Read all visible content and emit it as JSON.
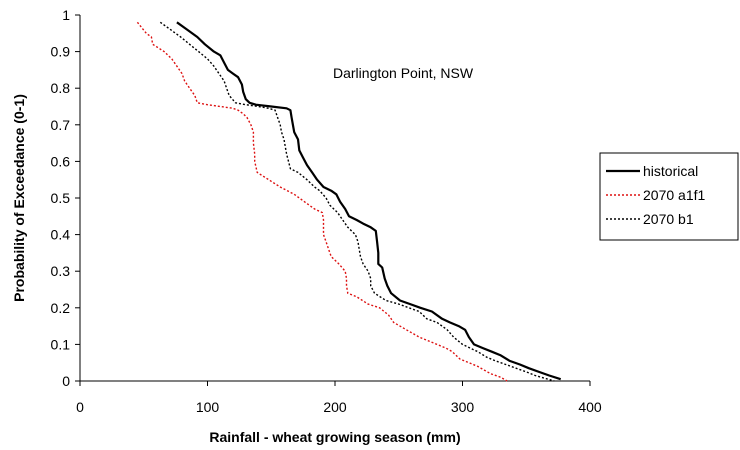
{
  "chart_data": {
    "type": "line",
    "title": "",
    "annotation": "Darlington Point, NSW",
    "xlabel": "Rainfall - wheat growing season (mm)",
    "ylabel": "Probability of Exceedance (0-1)",
    "xlim": [
      0,
      400
    ],
    "ylim": [
      0,
      1
    ],
    "x_ticks": [
      "0",
      "100",
      "200",
      "300",
      "400"
    ],
    "y_ticks": [
      "0",
      "0.1",
      "0.2",
      "0.3",
      "0.4",
      "0.5",
      "0.6",
      "0.7",
      "0.8",
      "0.9",
      "1"
    ],
    "grid": false,
    "legend_position": "right",
    "series": [
      {
        "name": "historical",
        "color": "#000000",
        "style": "solid",
        "points": [
          [
            76,
            0.98
          ],
          [
            84,
            0.96
          ],
          [
            92,
            0.94
          ],
          [
            98,
            0.92
          ],
          [
            105,
            0.9
          ],
          [
            110,
            0.89
          ],
          [
            113,
            0.87
          ],
          [
            116,
            0.85
          ],
          [
            120,
            0.84
          ],
          [
            124,
            0.83
          ],
          [
            127,
            0.81
          ],
          [
            128,
            0.79
          ],
          [
            130,
            0.77
          ],
          [
            133,
            0.76
          ],
          [
            138,
            0.755
          ],
          [
            150,
            0.75
          ],
          [
            162,
            0.745
          ],
          [
            165,
            0.74
          ],
          [
            166,
            0.72
          ],
          [
            167,
            0.7
          ],
          [
            168,
            0.68
          ],
          [
            171,
            0.66
          ],
          [
            172,
            0.63
          ],
          [
            175,
            0.61
          ],
          [
            178,
            0.59
          ],
          [
            182,
            0.57
          ],
          [
            186,
            0.55
          ],
          [
            191,
            0.53
          ],
          [
            197,
            0.52
          ],
          [
            201,
            0.51
          ],
          [
            204,
            0.49
          ],
          [
            208,
            0.47
          ],
          [
            211,
            0.45
          ],
          [
            217,
            0.44
          ],
          [
            222,
            0.43
          ],
          [
            228,
            0.42
          ],
          [
            232,
            0.41
          ],
          [
            233,
            0.38
          ],
          [
            234,
            0.35
          ],
          [
            234,
            0.32
          ],
          [
            237,
            0.31
          ],
          [
            239,
            0.28
          ],
          [
            241,
            0.26
          ],
          [
            244,
            0.24
          ],
          [
            251,
            0.22
          ],
          [
            259,
            0.21
          ],
          [
            267,
            0.2
          ],
          [
            276,
            0.19
          ],
          [
            284,
            0.17
          ],
          [
            290,
            0.16
          ],
          [
            297,
            0.15
          ],
          [
            302,
            0.14
          ],
          [
            305,
            0.12
          ],
          [
            309,
            0.1
          ],
          [
            316,
            0.09
          ],
          [
            323,
            0.08
          ],
          [
            330,
            0.07
          ],
          [
            337,
            0.055
          ],
          [
            345,
            0.045
          ],
          [
            352,
            0.035
          ],
          [
            360,
            0.025
          ],
          [
            368,
            0.015
          ],
          [
            377,
            0.005
          ]
        ]
      },
      {
        "name": "2070 a1f1",
        "color": "#dd1111",
        "style": "dotted",
        "points": [
          [
            45,
            0.98
          ],
          [
            52,
            0.95
          ],
          [
            56,
            0.94
          ],
          [
            57,
            0.92
          ],
          [
            66,
            0.9
          ],
          [
            72,
            0.88
          ],
          [
            76,
            0.86
          ],
          [
            80,
            0.84
          ],
          [
            82,
            0.82
          ],
          [
            86,
            0.8
          ],
          [
            90,
            0.78
          ],
          [
            92,
            0.76
          ],
          [
            100,
            0.755
          ],
          [
            110,
            0.75
          ],
          [
            120,
            0.745
          ],
          [
            124,
            0.74
          ],
          [
            128,
            0.73
          ],
          [
            131,
            0.72
          ],
          [
            134,
            0.7
          ],
          [
            136,
            0.68
          ],
          [
            136,
            0.65
          ],
          [
            137,
            0.62
          ],
          [
            137,
            0.6
          ],
          [
            139,
            0.57
          ],
          [
            148,
            0.55
          ],
          [
            157,
            0.53
          ],
          [
            168,
            0.51
          ],
          [
            176,
            0.49
          ],
          [
            184,
            0.47
          ],
          [
            190,
            0.46
          ],
          [
            191,
            0.44
          ],
          [
            191,
            0.42
          ],
          [
            191,
            0.4
          ],
          [
            193,
            0.38
          ],
          [
            195,
            0.36
          ],
          [
            197,
            0.34
          ],
          [
            203,
            0.32
          ],
          [
            208,
            0.3
          ],
          [
            209,
            0.28
          ],
          [
            209,
            0.26
          ],
          [
            210,
            0.24
          ],
          [
            217,
            0.23
          ],
          [
            226,
            0.21
          ],
          [
            235,
            0.2
          ],
          [
            242,
            0.18
          ],
          [
            246,
            0.16
          ],
          [
            256,
            0.14
          ],
          [
            266,
            0.12
          ],
          [
            280,
            0.1
          ],
          [
            287,
            0.09
          ],
          [
            292,
            0.08
          ],
          [
            298,
            0.06
          ],
          [
            305,
            0.05
          ],
          [
            312,
            0.04
          ],
          [
            322,
            0.02
          ],
          [
            330,
            0.01
          ],
          [
            335,
            0.0
          ]
        ]
      },
      {
        "name": "2070 b1",
        "color": "#000000",
        "style": "dotted",
        "points": [
          [
            63,
            0.98
          ],
          [
            71,
            0.96
          ],
          [
            79,
            0.94
          ],
          [
            86,
            0.92
          ],
          [
            93,
            0.9
          ],
          [
            100,
            0.88
          ],
          [
            105,
            0.86
          ],
          [
            109,
            0.84
          ],
          [
            113,
            0.82
          ],
          [
            115,
            0.8
          ],
          [
            117,
            0.78
          ],
          [
            122,
            0.76
          ],
          [
            130,
            0.755
          ],
          [
            140,
            0.75
          ],
          [
            148,
            0.745
          ],
          [
            153,
            0.74
          ],
          [
            155,
            0.72
          ],
          [
            157,
            0.7
          ],
          [
            158,
            0.68
          ],
          [
            160,
            0.66
          ],
          [
            162,
            0.62
          ],
          [
            165,
            0.58
          ],
          [
            171,
            0.57
          ],
          [
            178,
            0.55
          ],
          [
            184,
            0.53
          ],
          [
            188,
            0.52
          ],
          [
            193,
            0.5
          ],
          [
            196,
            0.48
          ],
          [
            202,
            0.46
          ],
          [
            206,
            0.44
          ],
          [
            210,
            0.42
          ],
          [
            216,
            0.4
          ],
          [
            218,
            0.38
          ],
          [
            219,
            0.36
          ],
          [
            220,
            0.34
          ],
          [
            222,
            0.32
          ],
          [
            226,
            0.3
          ],
          [
            228,
            0.28
          ],
          [
            228,
            0.26
          ],
          [
            231,
            0.24
          ],
          [
            240,
            0.22
          ],
          [
            250,
            0.21
          ],
          [
            258,
            0.2
          ],
          [
            266,
            0.19
          ],
          [
            272,
            0.17
          ],
          [
            280,
            0.16
          ],
          [
            288,
            0.14
          ],
          [
            293,
            0.12
          ],
          [
            300,
            0.1
          ],
          [
            306,
            0.09
          ],
          [
            312,
            0.08
          ],
          [
            319,
            0.065
          ],
          [
            326,
            0.055
          ],
          [
            334,
            0.045
          ],
          [
            342,
            0.035
          ],
          [
            350,
            0.025
          ],
          [
            357,
            0.015
          ],
          [
            364,
            0.008
          ],
          [
            372,
            0.0
          ]
        ]
      }
    ]
  }
}
